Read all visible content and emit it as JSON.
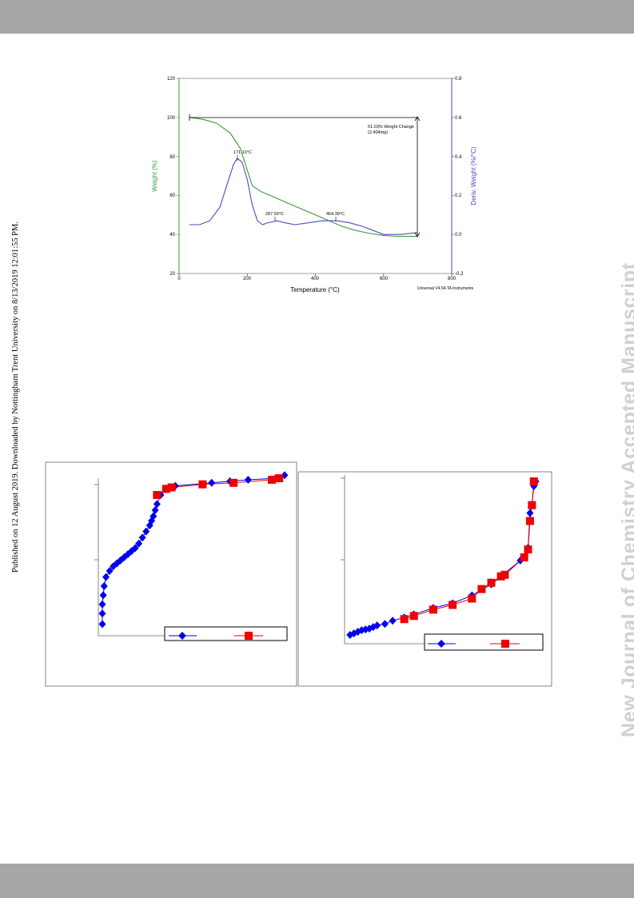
{
  "sidebar": {
    "left_text": "Published on 12 August 2019. Downloaded by Nottingham Trent University on 8/13/2019 12:01:55 PM.",
    "right_watermark": "New Journal of Chemistry Accepted Manuscript"
  },
  "colors": {
    "weight": "#3a9a3a",
    "deriv": "#4b4bc0",
    "blue": "#0000ee",
    "red": "#ee0000",
    "bar": "#a6a6a6"
  },
  "tga": {
    "xlabel": "Temperature (°C)",
    "ylabel_left": "Weight (%)",
    "ylabel_right": "Deriv. Weight (%/°C)",
    "footer": "Universal V4.5A TA Instruments",
    "x_ticks": [
      "0",
      "200",
      "400",
      "600",
      "800"
    ],
    "y_left_ticks": [
      "20",
      "40",
      "60",
      "80",
      "100",
      "120"
    ],
    "y_right_ticks": [
      "-0.2",
      "0.0",
      "0.2",
      "0.4",
      "0.6",
      "0.8"
    ],
    "annotation_change_line1": "61.03% Weight Change",
    "annotation_change_line2": "(2.404mg)",
    "peak1": "171.10°C",
    "peak2": "287.50°C",
    "peak3": "464.39°C"
  },
  "chart_data": [
    {
      "type": "line",
      "xlabel": "Temperature (°C)",
      "xlim": [
        0,
        800
      ],
      "y_left": {
        "label": "Weight (%)",
        "lim": [
          20,
          120
        ]
      },
      "y_right": {
        "label": "Deriv. Weight (%/°C)",
        "lim": [
          -0.2,
          0.8
        ]
      },
      "series": [
        {
          "axis": "left",
          "x": [
            30,
            70,
            110,
            150,
            180,
            200,
            215,
            240,
            280,
            320,
            360,
            400,
            440,
            480,
            520,
            560,
            600,
            640,
            700
          ],
          "y": [
            100,
            99,
            97,
            92,
            84,
            73,
            65,
            62,
            59,
            56,
            53,
            50,
            47,
            44,
            42,
            40.5,
            39.5,
            39,
            39
          ]
        },
        {
          "axis": "right",
          "x": [
            30,
            60,
            90,
            120,
            145,
            160,
            171.1,
            185,
            200,
            215,
            230,
            245,
            260,
            287.5,
            310,
            340,
            380,
            420,
            464.39,
            500,
            540,
            570,
            600,
            650,
            700
          ],
          "y": [
            0.05,
            0.05,
            0.07,
            0.14,
            0.28,
            0.36,
            0.39,
            0.37,
            0.28,
            0.15,
            0.07,
            0.05,
            0.06,
            0.07,
            0.06,
            0.05,
            0.06,
            0.07,
            0.07,
            0.06,
            0.04,
            0.02,
            0.0,
            0.0,
            0.01
          ]
        }
      ],
      "annotations": [
        "171.10°C",
        "287.50°C",
        "464.39°C",
        "61.03% Weight Change",
        "(2.404mg)"
      ]
    },
    {
      "type": "scatter",
      "xlim": [
        0,
        1
      ],
      "ylim": [
        0,
        1
      ],
      "series": [
        {
          "marker": "diamond",
          "color": "#0000ee",
          "x": [
            0.0,
            0.0,
            0.0,
            0.005,
            0.01,
            0.02,
            0.04,
            0.06,
            0.08,
            0.1,
            0.12,
            0.14,
            0.16,
            0.18,
            0.2,
            0.22,
            0.24,
            0.26,
            0.27,
            0.28,
            0.29,
            0.3,
            0.32,
            0.35,
            0.4,
            0.6,
            0.7,
            0.8,
            0.95,
            1.0
          ],
          "y": [
            0.05,
            0.12,
            0.18,
            0.24,
            0.3,
            0.36,
            0.4,
            0.43,
            0.45,
            0.47,
            0.49,
            0.51,
            0.53,
            0.55,
            0.58,
            0.62,
            0.66,
            0.7,
            0.73,
            0.76,
            0.8,
            0.84,
            0.9,
            0.94,
            0.96,
            0.98,
            0.99,
            1.0,
            1.01,
            1.03
          ]
        },
        {
          "marker": "square",
          "color": "#ee0000",
          "x": [
            0.3,
            0.35,
            0.38,
            0.55,
            0.72,
            0.93,
            0.97
          ],
          "y": [
            0.9,
            0.94,
            0.95,
            0.97,
            0.98,
            1.0,
            1.01
          ]
        }
      ]
    },
    {
      "type": "scatter",
      "xlim": [
        0,
        1
      ],
      "ylim": [
        0,
        1
      ],
      "series": [
        {
          "marker": "diamond",
          "color": "#0000ee",
          "x": [
            0.02,
            0.04,
            0.06,
            0.08,
            0.1,
            0.12,
            0.14,
            0.16,
            0.2,
            0.24,
            0.3,
            0.35,
            0.45,
            0.55,
            0.65,
            0.75,
            0.9,
            0.92,
            0.94,
            0.95,
            0.96,
            0.97,
            0.98
          ],
          "y": [
            0.03,
            0.04,
            0.05,
            0.06,
            0.065,
            0.07,
            0.08,
            0.09,
            0.1,
            0.12,
            0.14,
            0.16,
            0.2,
            0.23,
            0.28,
            0.35,
            0.5,
            0.52,
            0.58,
            0.8,
            0.85,
            0.97,
            1.0
          ]
        },
        {
          "marker": "square",
          "color": "#ee0000",
          "x": [
            0.3,
            0.35,
            0.45,
            0.55,
            0.65,
            0.7,
            0.75,
            0.8,
            0.82,
            0.92,
            0.94,
            0.95,
            0.96,
            0.97
          ],
          "y": [
            0.13,
            0.15,
            0.19,
            0.22,
            0.26,
            0.32,
            0.36,
            0.4,
            0.41,
            0.52,
            0.57,
            0.75,
            0.85,
            1.0
          ]
        }
      ]
    }
  ]
}
